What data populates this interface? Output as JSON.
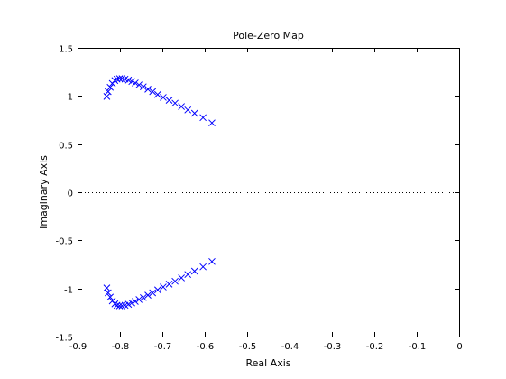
{
  "chart_data": {
    "type": "scatter",
    "title": "Pole-Zero Map",
    "xlabel": "Real Axis",
    "ylabel": "Imaginary Axis",
    "xlim": [
      -0.9,
      0
    ],
    "ylim": [
      -1.5,
      1.5
    ],
    "xticks": [
      -0.9,
      -0.8,
      -0.7,
      -0.6,
      -0.5,
      -0.4,
      -0.3,
      -0.2,
      -0.1,
      0
    ],
    "xtick_labels": [
      "-0.9",
      "-0.8",
      "-0.7",
      "-0.6",
      "-0.5",
      "-0.4",
      "-0.3",
      "-0.2",
      "-0.1",
      "0"
    ],
    "yticks": [
      -1.5,
      -1,
      -0.5,
      0,
      0.5,
      1,
      1.5
    ],
    "ytick_labels": [
      "-1.5",
      "-1",
      "-0.5",
      "0",
      "0.5",
      "1",
      "1.5"
    ],
    "grid": false,
    "marker": "x",
    "marker_color": "#0000ff",
    "reference_line": {
      "y": 0,
      "style": "dotted"
    },
    "series": [
      {
        "x": [
          -0.831,
          -0.828,
          -0.823,
          -0.818,
          -0.812,
          -0.807,
          -0.801,
          -0.795,
          -0.788,
          -0.78,
          -0.772,
          -0.764,
          -0.755,
          -0.745,
          -0.734,
          -0.723,
          -0.711,
          -0.698,
          -0.684,
          -0.67,
          -0.655,
          -0.64,
          -0.624,
          -0.604,
          -0.583
        ],
        "y": [
          0.995,
          1.045,
          1.09,
          1.13,
          1.16,
          1.175,
          1.18,
          1.18,
          1.175,
          1.165,
          1.15,
          1.135,
          1.115,
          1.095,
          1.07,
          1.045,
          1.015,
          0.985,
          0.955,
          0.925,
          0.89,
          0.855,
          0.82,
          0.775,
          0.72
        ]
      },
      {
        "x": [
          -0.831,
          -0.828,
          -0.823,
          -0.818,
          -0.812,
          -0.807,
          -0.801,
          -0.795,
          -0.788,
          -0.78,
          -0.772,
          -0.764,
          -0.755,
          -0.745,
          -0.734,
          -0.723,
          -0.711,
          -0.698,
          -0.684,
          -0.67,
          -0.655,
          -0.64,
          -0.624,
          -0.604,
          -0.583
        ],
        "y": [
          -0.995,
          -1.045,
          -1.09,
          -1.13,
          -1.16,
          -1.175,
          -1.18,
          -1.18,
          -1.175,
          -1.165,
          -1.15,
          -1.135,
          -1.115,
          -1.095,
          -1.07,
          -1.045,
          -1.015,
          -0.985,
          -0.955,
          -0.925,
          -0.89,
          -0.855,
          -0.82,
          -0.775,
          -0.72
        ]
      }
    ]
  }
}
